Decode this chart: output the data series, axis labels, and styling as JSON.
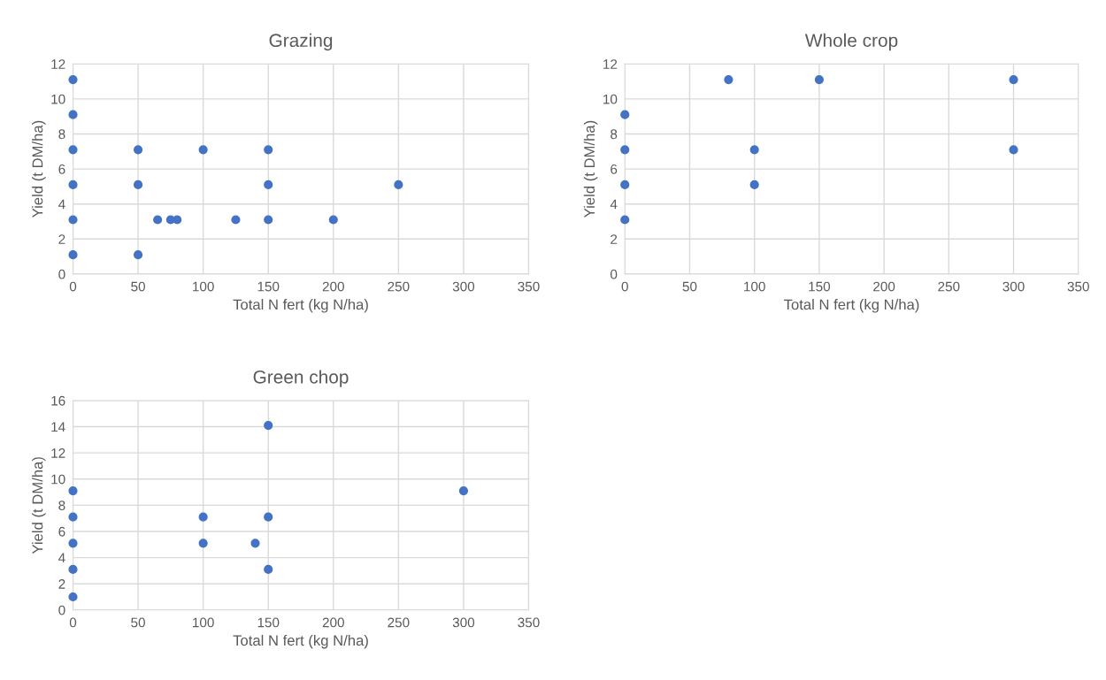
{
  "chart_data": [
    {
      "type": "scatter",
      "title": "Grazing",
      "xlabel": "Total N fert (kg N/ha)",
      "ylabel": "Yield (t DM/ha)",
      "xlim": [
        0,
        350
      ],
      "xticks": [
        0,
        50,
        100,
        150,
        200,
        250,
        300,
        350
      ],
      "ylim": [
        0,
        12
      ],
      "yticks": [
        0,
        2,
        4,
        6,
        8,
        10,
        12
      ],
      "grid": true,
      "marker": "circle",
      "series": [
        {
          "color": "#4472c4",
          "x": [
            0,
            0,
            0,
            0,
            0,
            0,
            50,
            50,
            50,
            100,
            65,
            75,
            80,
            125,
            150,
            150,
            150,
            200,
            250
          ],
          "values": [
            11.1,
            9.1,
            7.1,
            5.1,
            3.1,
            1.1,
            7.1,
            5.1,
            1.1,
            7.1,
            3.1,
            3.1,
            3.1,
            3.1,
            7.1,
            5.1,
            3.1,
            3.1,
            5.1
          ]
        }
      ]
    },
    {
      "type": "scatter",
      "title": "Whole crop",
      "xlabel": "Total N fert (kg N/ha)",
      "ylabel": "Yield (t DM/ha)",
      "xlim": [
        0,
        350
      ],
      "xticks": [
        0,
        50,
        100,
        150,
        200,
        250,
        300,
        350
      ],
      "ylim": [
        0,
        12
      ],
      "yticks": [
        0,
        2,
        4,
        6,
        8,
        10,
        12
      ],
      "grid": true,
      "marker": "circle",
      "series": [
        {
          "color": "#4472c4",
          "x": [
            0,
            0,
            0,
            0,
            80,
            100,
            100,
            150,
            300,
            300
          ],
          "values": [
            9.1,
            7.1,
            5.1,
            3.1,
            11.1,
            7.1,
            5.1,
            11.1,
            11.1,
            7.1
          ]
        }
      ]
    },
    {
      "type": "scatter",
      "title": "Green chop",
      "xlabel": "Total N fert (kg N/ha)",
      "ylabel": "Yield (t DM/ha)",
      "xlim": [
        0,
        350
      ],
      "xticks": [
        0,
        50,
        100,
        150,
        200,
        250,
        300,
        350
      ],
      "ylim": [
        0,
        16
      ],
      "yticks": [
        0,
        2,
        4,
        6,
        8,
        10,
        12,
        14,
        16
      ],
      "grid": true,
      "marker": "circle",
      "series": [
        {
          "color": "#4472c4",
          "x": [
            0,
            0,
            0,
            0,
            0,
            100,
            100,
            140,
            150,
            150,
            150,
            300
          ],
          "values": [
            9.1,
            7.1,
            5.1,
            3.1,
            1.0,
            7.1,
            5.1,
            5.1,
            14.1,
            7.1,
            3.1,
            9.1
          ]
        }
      ]
    }
  ]
}
